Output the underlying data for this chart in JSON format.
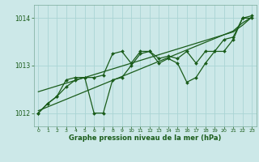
{
  "x": [
    0,
    1,
    2,
    3,
    4,
    5,
    6,
    7,
    8,
    9,
    10,
    11,
    12,
    13,
    14,
    15,
    16,
    17,
    18,
    19,
    20,
    21,
    22,
    23
  ],
  "line_zigzag1": [
    1012.0,
    1012.2,
    1012.35,
    1012.55,
    1012.7,
    1012.75,
    1012.0,
    1012.0,
    1012.7,
    1012.75,
    1013.0,
    1013.25,
    1013.3,
    1013.05,
    1013.15,
    1013.05,
    1012.65,
    1012.75,
    1013.05,
    1013.3,
    1013.3,
    1013.55,
    1014.0,
    1014.0
  ],
  "line_zigzag2": [
    1012.0,
    1012.2,
    1012.35,
    1012.7,
    1012.75,
    1012.75,
    1012.75,
    1012.8,
    1013.25,
    1013.3,
    1013.05,
    1013.3,
    1013.3,
    1013.15,
    1013.2,
    1013.15,
    1013.3,
    1013.05,
    1013.3,
    1013.3,
    1013.55,
    1013.6,
    1014.0,
    1014.05
  ],
  "line_trend1": [
    1012.05,
    1012.13,
    1012.21,
    1012.29,
    1012.37,
    1012.45,
    1012.53,
    1012.61,
    1012.69,
    1012.77,
    1012.85,
    1012.93,
    1013.01,
    1013.09,
    1013.17,
    1013.25,
    1013.33,
    1013.41,
    1013.49,
    1013.57,
    1013.65,
    1013.73,
    1013.9,
    1014.02
  ],
  "line_trend2": [
    1012.45,
    1012.51,
    1012.57,
    1012.63,
    1012.69,
    1012.75,
    1012.81,
    1012.87,
    1012.93,
    1012.99,
    1013.05,
    1013.11,
    1013.17,
    1013.23,
    1013.29,
    1013.35,
    1013.41,
    1013.47,
    1013.53,
    1013.59,
    1013.65,
    1013.71,
    1013.85,
    1014.02
  ],
  "bg_color": "#cce8e8",
  "grid_color": "#aad4d4",
  "line_color": "#1a5c1a",
  "xlabel": "Graphe pression niveau de la mer (hPa)",
  "ylabel_ticks": [
    1012,
    1013,
    1014
  ],
  "xlim": [
    -0.5,
    23.5
  ],
  "ylim": [
    1011.72,
    1014.28
  ]
}
